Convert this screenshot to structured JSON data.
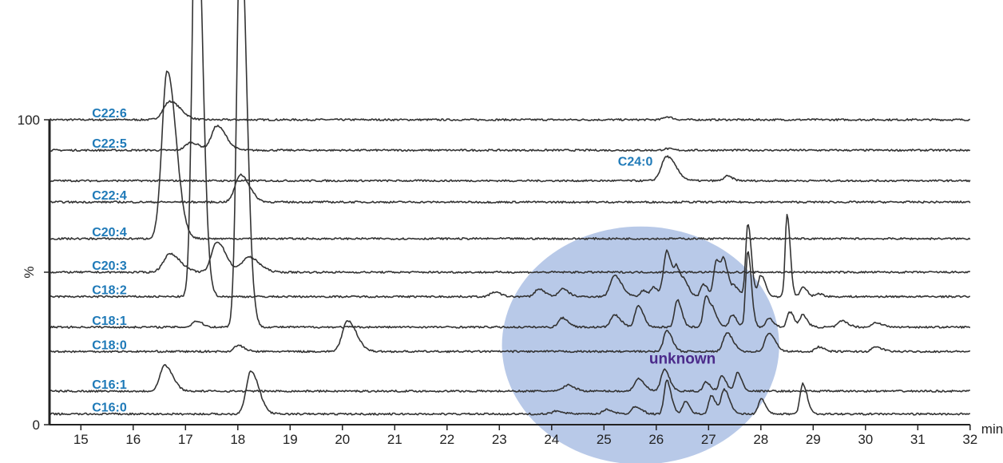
{
  "chart_data": {
    "type": "line",
    "subtype": "stacked chromatogram traces",
    "x_axis": {
      "unit_label": "min",
      "ticks": [
        15,
        16,
        17,
        18,
        19,
        20,
        21,
        22,
        23,
        24,
        25,
        26,
        27,
        28,
        29,
        30,
        31,
        32
      ],
      "range": [
        14.4,
        32
      ]
    },
    "y_axis": {
      "label": "%",
      "ticks": [
        "0",
        "100"
      ],
      "mid_tick": true
    },
    "grid": false,
    "traces": [
      {
        "name": "C22:6",
        "baseline_pct": 100,
        "peaks": [
          [
            16.7,
            6,
            0.12
          ],
          [
            26.2,
            1,
            0.06
          ]
        ]
      },
      {
        "name": "C22:5",
        "baseline_pct": 90,
        "peaks": [
          [
            17.1,
            2.5,
            0.1
          ],
          [
            17.6,
            8,
            0.1
          ],
          [
            26.2,
            0.5,
            0.06
          ]
        ]
      },
      {
        "name": "",
        "baseline_pct": 80,
        "peaks": [
          [
            26.2,
            8,
            0.1
          ],
          [
            27.35,
            1.5,
            0.06
          ]
        ]
      },
      {
        "name": "C22:4",
        "baseline_pct": 73,
        "peaks": [
          [
            18.05,
            9,
            0.1
          ]
        ]
      },
      {
        "name": "C20:4",
        "baseline_pct": 61,
        "peaks": [
          [
            16.65,
            55,
            0.1
          ]
        ]
      },
      {
        "name": "C20:3",
        "baseline_pct": 50,
        "peaks": [
          [
            16.7,
            6,
            0.12
          ],
          [
            17.6,
            10,
            0.1
          ],
          [
            18.2,
            5,
            0.12
          ]
        ]
      },
      {
        "name": "C18:2",
        "baseline_pct": 42,
        "peaks": [
          [
            17.2,
            145,
            0.07
          ],
          [
            22.9,
            1.5,
            0.07
          ],
          [
            23.75,
            2.5,
            0.07
          ],
          [
            24.2,
            2.5,
            0.07
          ],
          [
            25.2,
            7,
            0.08
          ],
          [
            25.75,
            2,
            0.05
          ],
          [
            25.95,
            3,
            0.05
          ],
          [
            26.2,
            15,
            0.06
          ],
          [
            26.4,
            8,
            0.05
          ],
          [
            26.55,
            4,
            0.05
          ],
          [
            26.9,
            4,
            0.05
          ],
          [
            27.15,
            12,
            0.05
          ],
          [
            27.3,
            10,
            0.05
          ],
          [
            27.5,
            3,
            0.05
          ],
          [
            27.75,
            24,
            0.04
          ],
          [
            28.0,
            7,
            0.05
          ],
          [
            28.5,
            27,
            0.035
          ],
          [
            28.8,
            3,
            0.05
          ],
          [
            29.1,
            1,
            0.05
          ]
        ]
      },
      {
        "name": "C18:1",
        "baseline_pct": 32,
        "peaks": [
          [
            17.2,
            2,
            0.07
          ],
          [
            18.05,
            133,
            0.07
          ],
          [
            24.2,
            3,
            0.07
          ],
          [
            25.2,
            4,
            0.07
          ],
          [
            25.65,
            7,
            0.06
          ],
          [
            26.4,
            9,
            0.05
          ],
          [
            26.95,
            10,
            0.05
          ],
          [
            27.1,
            4,
            0.05
          ],
          [
            27.45,
            4,
            0.05
          ],
          [
            27.75,
            25,
            0.04
          ],
          [
            28.15,
            3,
            0.05
          ],
          [
            28.55,
            5,
            0.05
          ],
          [
            28.8,
            4,
            0.05
          ],
          [
            29.55,
            2,
            0.07
          ],
          [
            30.2,
            1.5,
            0.07
          ]
        ]
      },
      {
        "name": "C18:0",
        "baseline_pct": 24,
        "peaks": [
          [
            18.0,
            2,
            0.07
          ],
          [
            20.1,
            10,
            0.1
          ],
          [
            26.2,
            7,
            0.06
          ],
          [
            27.35,
            6,
            0.07
          ],
          [
            28.15,
            6,
            0.07
          ],
          [
            29.1,
            1.5,
            0.06
          ],
          [
            30.2,
            1.5,
            0.07
          ]
        ]
      },
      {
        "name": "C16:1",
        "baseline_pct": 11,
        "peaks": [
          [
            16.6,
            8.5,
            0.09
          ],
          [
            24.3,
            2,
            0.08
          ],
          [
            25.65,
            4,
            0.07
          ],
          [
            26.15,
            7,
            0.06
          ],
          [
            26.95,
            3,
            0.05
          ],
          [
            27.25,
            5,
            0.05
          ],
          [
            27.55,
            6,
            0.05
          ]
        ]
      },
      {
        "name": "C16:0",
        "baseline_pct": 3.5,
        "peaks": [
          [
            18.25,
            14,
            0.09
          ],
          [
            24.1,
            1,
            0.08
          ],
          [
            25.05,
            1.5,
            0.07
          ],
          [
            25.6,
            2.5,
            0.07
          ],
          [
            26.2,
            11,
            0.05
          ],
          [
            26.55,
            4,
            0.05
          ],
          [
            27.05,
            6,
            0.05
          ],
          [
            27.3,
            8,
            0.06
          ],
          [
            28.0,
            5,
            0.05
          ],
          [
            28.8,
            10,
            0.05
          ]
        ]
      }
    ],
    "annotations": [
      {
        "text": "C24:0",
        "x": 25.6,
        "y_pct": 85
      },
      {
        "text": "unknown",
        "x": 26.5,
        "y_pct": 20
      }
    ],
    "highlight_region": {
      "label": "unknown",
      "center_x": 25.7,
      "center_y_pct": 26,
      "radius_x": 2.65,
      "radius_y_pct": 39,
      "color": "#b8c9e8"
    }
  }
}
